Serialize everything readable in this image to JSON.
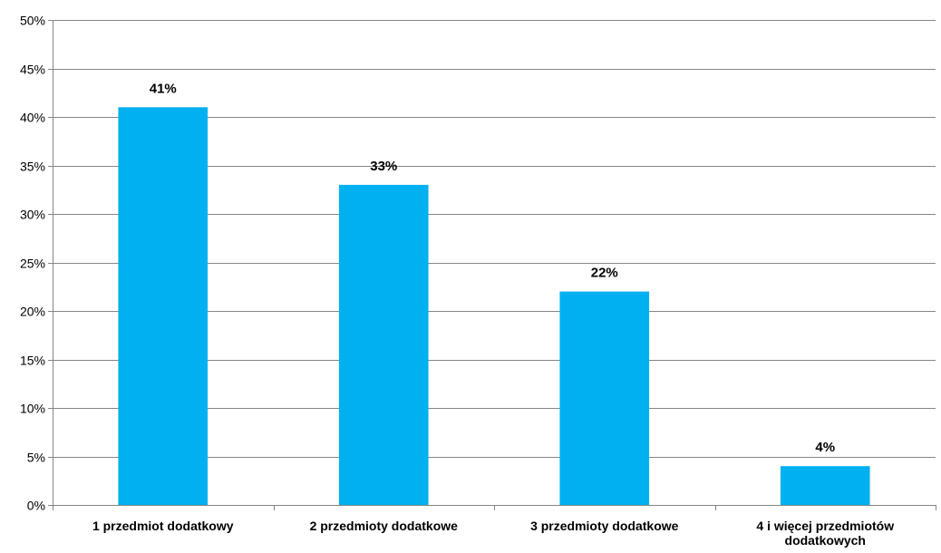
{
  "chart_data": {
    "type": "bar",
    "categories": [
      "1 przedmiot dodatkowy",
      "2 przedmioty dodatkowe",
      "3 przedmioty dodatkowe",
      "4 i więcej przedmiotów dodatkowych"
    ],
    "values": [
      41,
      33,
      22,
      4
    ],
    "data_labels": [
      "41%",
      "33%",
      "22%",
      "4%"
    ],
    "y_ticks": [
      "0%",
      "5%",
      "10%",
      "15%",
      "20%",
      "25%",
      "30%",
      "35%",
      "40%",
      "45%",
      "50%"
    ],
    "ylim": [
      0,
      50
    ],
    "y_step": 5,
    "grid": true,
    "legend": "none",
    "bar_color": "#00b0f0",
    "grid_color": "#868686"
  }
}
